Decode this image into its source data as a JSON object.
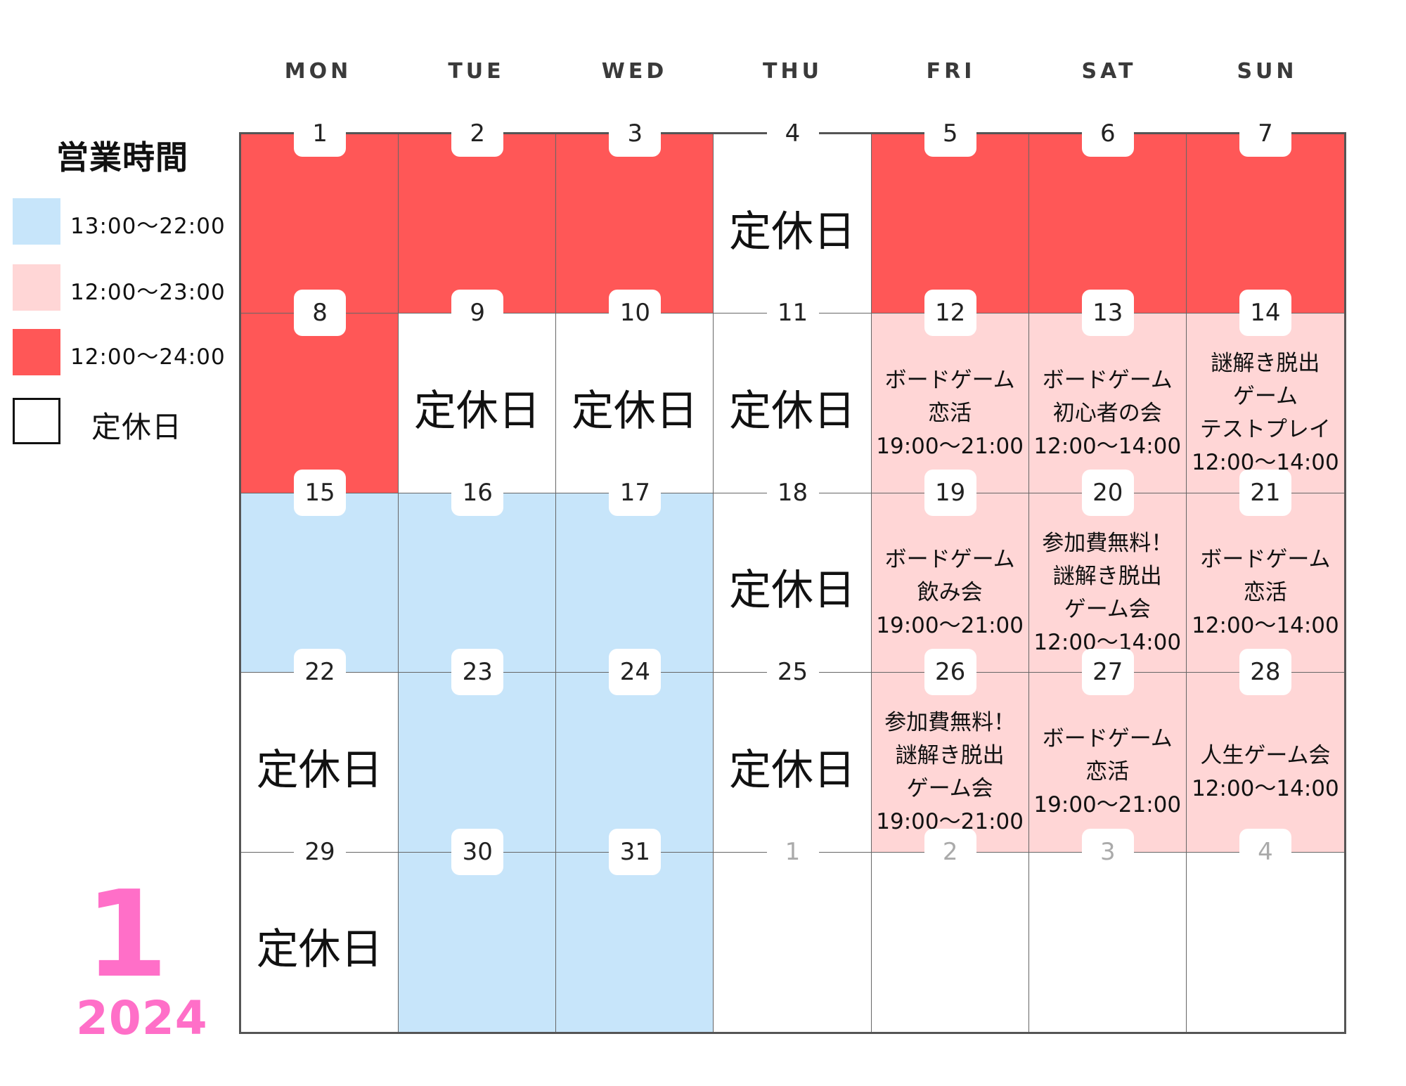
{
  "weekdays": [
    "MON",
    "TUE",
    "WED",
    "THU",
    "FRI",
    "SAT",
    "SUN"
  ],
  "legend": {
    "title": "営業時間",
    "items": [
      {
        "color": "#c7e5fa",
        "label": "13:00〜22:00"
      },
      {
        "color": "#ffd6d6",
        "label": "12:00〜23:00"
      },
      {
        "color": "#ff5757",
        "label": "12:00〜24:00"
      },
      {
        "color": "#ffffff",
        "label": "定休日"
      }
    ]
  },
  "month": "1",
  "year": "2024",
  "colors": {
    "red": "#ff5757",
    "pink": "#ffd6d6",
    "blue": "#c7e5fa",
    "white": "#ffffff",
    "accent": "#ff6fc8"
  },
  "weeks": [
    [
      {
        "day": "1",
        "color": "red"
      },
      {
        "day": "2",
        "color": "red"
      },
      {
        "day": "3",
        "color": "red"
      },
      {
        "day": "4",
        "color": "white",
        "closed": "定休日"
      },
      {
        "day": "5",
        "color": "red"
      },
      {
        "day": "6",
        "color": "red"
      },
      {
        "day": "7",
        "color": "red"
      }
    ],
    [
      {
        "day": "8",
        "color": "red"
      },
      {
        "day": "9",
        "color": "white",
        "closed": "定休日"
      },
      {
        "day": "10",
        "color": "white",
        "closed": "定休日"
      },
      {
        "day": "11",
        "color": "white",
        "closed": "定休日"
      },
      {
        "day": "12",
        "color": "pink",
        "event": [
          "ボードゲーム",
          "恋活",
          "19:00〜21:00"
        ]
      },
      {
        "day": "13",
        "color": "pink",
        "event": [
          "ボードゲーム",
          "初心者の会",
          "12:00〜14:00"
        ]
      },
      {
        "day": "14",
        "color": "pink",
        "event": [
          "謎解き脱出",
          "ゲーム",
          "テストプレイ",
          "12:00〜14:00"
        ]
      }
    ],
    [
      {
        "day": "15",
        "color": "blue"
      },
      {
        "day": "16",
        "color": "blue"
      },
      {
        "day": "17",
        "color": "blue"
      },
      {
        "day": "18",
        "color": "white",
        "closed": "定休日"
      },
      {
        "day": "19",
        "color": "pink",
        "event": [
          "ボードゲーム",
          "飲み会",
          "19:00〜21:00"
        ]
      },
      {
        "day": "20",
        "color": "pink",
        "event": [
          "参加費無料！",
          "謎解き脱出",
          "ゲーム会",
          "12:00〜14:00"
        ]
      },
      {
        "day": "21",
        "color": "pink",
        "event": [
          "ボードゲーム",
          "恋活",
          "12:00〜14:00"
        ]
      }
    ],
    [
      {
        "day": "22",
        "color": "white",
        "closed": "定休日"
      },
      {
        "day": "23",
        "color": "blue"
      },
      {
        "day": "24",
        "color": "blue"
      },
      {
        "day": "25",
        "color": "white",
        "closed": "定休日"
      },
      {
        "day": "26",
        "color": "pink",
        "event": [
          "参加費無料！",
          "謎解き脱出",
          "ゲーム会",
          "19:00〜21:00"
        ]
      },
      {
        "day": "27",
        "color": "pink",
        "event": [
          "ボードゲーム",
          "恋活",
          "19:00〜21:00"
        ]
      },
      {
        "day": "28",
        "color": "pink",
        "event": [
          "人生ゲーム会",
          "12:00〜14:00"
        ]
      }
    ],
    [
      {
        "day": "29",
        "color": "white",
        "closed": "定休日"
      },
      {
        "day": "30",
        "color": "blue"
      },
      {
        "day": "31",
        "color": "blue"
      },
      {
        "day": "1",
        "color": "white",
        "muted": true
      },
      {
        "day": "2",
        "color": "white",
        "muted": true
      },
      {
        "day": "3",
        "color": "white",
        "muted": true
      },
      {
        "day": "4",
        "color": "white",
        "muted": true
      }
    ]
  ]
}
